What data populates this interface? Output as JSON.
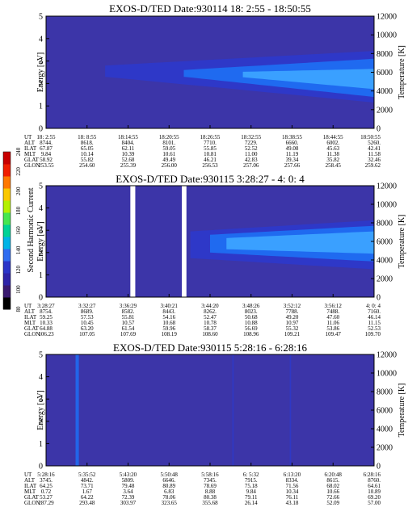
{
  "colorbar": {
    "label": "Second Harmonic Current",
    "ticks": [
      "80",
      "100",
      "120",
      "140",
      "160",
      "180",
      "200",
      "220",
      "240"
    ],
    "colors": [
      "#000000",
      "#3a1a70",
      "#2e24a8",
      "#2b35c8",
      "#2f6cf0",
      "#00b4e6",
      "#00d296",
      "#46e650",
      "#b4f000",
      "#fac800",
      "#ff7800",
      "#f01e00",
      "#c80000"
    ]
  },
  "chart_data": [
    {
      "type": "heatmap",
      "title": "EXOS-D/TED",
      "date": "Date:930114",
      "time_range": "18: 2:55 - 18:50:55",
      "ylabel": "Energy [eV]",
      "ylabel_right": "Temperature [K]",
      "ylim": [
        0,
        5
      ],
      "yticks": [
        "0",
        "1",
        "2",
        "3",
        "4",
        "5"
      ],
      "ylim_right": [
        0,
        12000
      ],
      "yticks_right": [
        "0",
        "2000",
        "4000",
        "6000",
        "8000",
        "10000",
        "12000"
      ],
      "background_color": "#3c35a8",
      "data_gaps": [],
      "spikes": [],
      "features": [
        {
          "t0": 0.18,
          "t1": 1.0,
          "e_center0": 2.55,
          "e_center1": 2.3,
          "halfwidth0": 0.25,
          "halfwidth1": 1.15,
          "level": "low"
        },
        {
          "t0": 0.42,
          "t1": 1.0,
          "e_center0": 2.45,
          "e_center1": 2.25,
          "halfwidth0": 0.15,
          "halfwidth1": 0.85,
          "level": "mid"
        },
        {
          "t0": 0.6,
          "t1": 1.0,
          "e_center0": 2.4,
          "e_center1": 2.2,
          "halfwidth0": 0.12,
          "halfwidth1": 0.45,
          "level": "high"
        }
      ],
      "table": {
        "labels": [
          "UT",
          "ALT",
          "ILAT",
          "MLT",
          "GLAT",
          "GLON"
        ],
        "columns": [
          [
            "18: 2:55",
            "8744.",
            "67.87",
            "9.84",
            "58.92",
            "253.55"
          ],
          [
            "18: 8:55",
            "8618.",
            "65.05",
            "10.14",
            "55.82",
            "254.60"
          ],
          [
            "18:14:55",
            "8404.",
            "62.11",
            "10.39",
            "52.68",
            "255.39"
          ],
          [
            "18:20:55",
            "8101.",
            "59.05",
            "10.61",
            "49.49",
            "256.00"
          ],
          [
            "18:26:55",
            "7710.",
            "55.85",
            "10.81",
            "46.21",
            "256.53"
          ],
          [
            "18:32:55",
            "7229.",
            "52.52",
            "11.00",
            "42.83",
            "257.06"
          ],
          [
            "18:38:55",
            "6660.",
            "49.08",
            "11.19",
            "39.34",
            "257.66"
          ],
          [
            "18:44:55",
            "6002.",
            "45.63",
            "11.38",
            "35.82",
            "258.45"
          ],
          [
            "18:50:55",
            "5260.",
            "42.41",
            "11.58",
            "32.46",
            "259.62"
          ]
        ]
      }
    },
    {
      "type": "heatmap",
      "title": "EXOS-D/TED",
      "date": "Date:930115",
      "time_range": "3:28:27 - 4: 0: 4",
      "ylabel": "Energy [eV]",
      "ylabel_right": "Temperature [K]",
      "ylim": [
        0,
        5
      ],
      "yticks": [
        "0",
        "1",
        "2",
        "3",
        "4",
        "5"
      ],
      "ylim_right": [
        0,
        12000
      ],
      "yticks_right": [
        "0",
        "2000",
        "4000",
        "6000",
        "8000",
        "10000",
        "12000"
      ],
      "background_color": "#3c35a8",
      "data_gaps": [
        [
          0.257,
          0.272
        ],
        [
          0.414,
          0.428
        ]
      ],
      "spikes": [],
      "features": [
        {
          "t0": 0.44,
          "t1": 1.0,
          "e_center0": 2.35,
          "e_center1": 2.35,
          "halfwidth0": 0.6,
          "halfwidth1": 1.1,
          "level": "low"
        },
        {
          "t0": 0.5,
          "t1": 1.0,
          "e_center0": 2.4,
          "e_center1": 2.4,
          "halfwidth0": 0.4,
          "halfwidth1": 0.8,
          "level": "mid"
        },
        {
          "t0": 0.55,
          "t1": 1.0,
          "e_center0": 2.4,
          "e_center1": 2.45,
          "halfwidth0": 0.25,
          "halfwidth1": 0.5,
          "level": "high"
        }
      ],
      "table": {
        "labels": [
          "UT",
          "ALT",
          "ILAT",
          "MLT",
          "GLAT",
          "GLON"
        ],
        "columns": [
          [
            "3:28:27",
            "8754.",
            "59.25",
            "10.33",
            "64.88",
            "106.23"
          ],
          [
            "3:32:27",
            "8689.",
            "57.53",
            "10.45",
            "63.20",
            "107.05"
          ],
          [
            "3:36:29",
            "8582.",
            "55.81",
            "10.57",
            "61.54",
            "107.69"
          ],
          [
            "3:40:21",
            "8443.",
            "54.16",
            "10.68",
            "59.96",
            "108.19"
          ],
          [
            "3:44:20",
            "8262.",
            "52.47",
            "10.78",
            "58.37",
            "108.60"
          ],
          [
            "3:48:26",
            "8023.",
            "50.68",
            "10.88",
            "56.69",
            "108.96"
          ],
          [
            "3:52:12",
            "7788.",
            "49.20",
            "10.97",
            "55.32",
            "109.21"
          ],
          [
            "3:56:12",
            "7488.",
            "47.60",
            "11.06",
            "53.86",
            "109.47"
          ],
          [
            "4: 0: 4",
            "7160.",
            "46.14",
            "11.15",
            "52.53",
            "109.70"
          ]
        ]
      }
    },
    {
      "type": "heatmap",
      "title": "EXOS-D/TED",
      "date": "Date:930115",
      "time_range": "5:28:16 - 6:28:16",
      "ylabel": "Energy [eV]",
      "ylabel_right": "Temperature [K]",
      "ylim": [
        0,
        5
      ],
      "yticks": [
        "0",
        "1",
        "2",
        "3",
        "4",
        "5"
      ],
      "ylim_right": [
        0,
        12000
      ],
      "yticks_right": [
        "0",
        "2000",
        "4000",
        "6000",
        "8000",
        "10000",
        "12000"
      ],
      "background_color": "#3c35a8",
      "data_gaps": [],
      "spikes": [
        {
          "t": 0.095,
          "width": 0.01,
          "level": "mid"
        },
        {
          "t": 0.57,
          "width": 0.004,
          "level": "low"
        },
        {
          "t": 0.745,
          "width": 0.004,
          "level": "low"
        }
      ],
      "features": [],
      "table": {
        "labels": [
          "UT",
          "ALT",
          "ILAT",
          "MLT",
          "GLAT",
          "GLON"
        ],
        "columns": [
          [
            "5:28:16",
            "3745.",
            "64.25",
            "0.72",
            "53.27",
            "287.29"
          ],
          [
            "5:35:52",
            "4842.",
            "73.71",
            "1.67",
            "64.22",
            "293.48"
          ],
          [
            "5:43:20",
            "5809.",
            "79.48",
            "3.64",
            "72.39",
            "303.97"
          ],
          [
            "5:50:48",
            "6646.",
            "80.89",
            "6.83",
            "78.06",
            "323.65"
          ],
          [
            "5:58:16",
            "7345.",
            "78.69",
            "8.88",
            "80.38",
            "355.68"
          ],
          [
            "6: 5:32",
            "7915.",
            "75.18",
            "9.84",
            "79.11",
            "26.14"
          ],
          [
            "6:13:20",
            "8334.",
            "71.56",
            "10.34",
            "76.11",
            "43.18"
          ],
          [
            "6:20:48",
            "8615.",
            "68.02",
            "10.66",
            "72.66",
            "52.09"
          ],
          [
            "6:28:16",
            "8760.",
            "64.61",
            "10.89",
            "69.20",
            "57.00"
          ]
        ]
      }
    }
  ]
}
